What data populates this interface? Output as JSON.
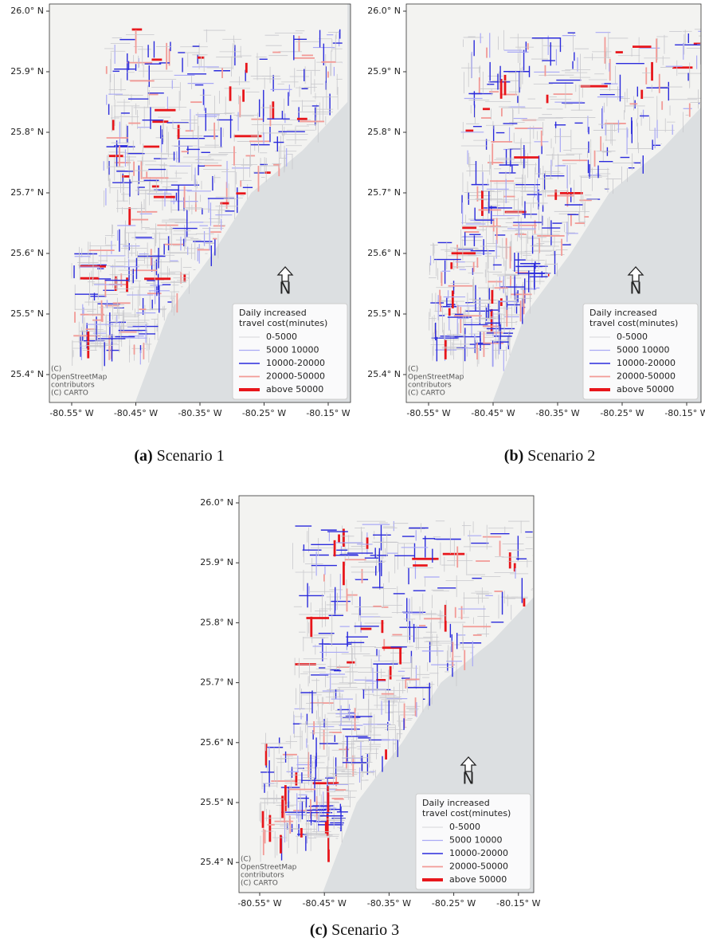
{
  "lat_ticks": [
    {
      "value": 26.0,
      "label": "26.0° N"
    },
    {
      "value": 25.9,
      "label": "25.9° N"
    },
    {
      "value": 25.8,
      "label": "25.8° N"
    },
    {
      "value": 25.7,
      "label": "25.7° N"
    },
    {
      "value": 25.6,
      "label": "25.6° N"
    },
    {
      "value": 25.5,
      "label": "25.5° N"
    },
    {
      "value": 25.4,
      "label": "25.4° N"
    }
  ],
  "lon_ticks": [
    {
      "value": -80.55,
      "label": "-80.55° W"
    },
    {
      "value": -80.45,
      "label": "-80.45° W"
    },
    {
      "value": -80.35,
      "label": "-80.35° W"
    },
    {
      "value": -80.25,
      "label": "-80.25° W"
    },
    {
      "value": -80.15,
      "label": "-80.15° W"
    }
  ],
  "legend": {
    "title": [
      "Daily increased",
      "travel cost(minutes)"
    ],
    "entries": [
      {
        "label": "0-5000",
        "color": "#c8c8cc"
      },
      {
        "label": "5000 10000",
        "color": "#a9a9f5"
      },
      {
        "label": "10000-20000",
        "color": "#2b2bdc"
      },
      {
        "label": "20000-50000",
        "color": "#f29a96"
      },
      {
        "label": "above 50000",
        "color": "#e8161b"
      }
    ]
  },
  "attribution": [
    "(C)",
    "OpenStreetMap",
    "contributors",
    "(C) CARTO"
  ],
  "north": "N",
  "panels": [
    {
      "tag": "(a)",
      "caption": "Scenario 1"
    },
    {
      "tag": "(b)",
      "caption": "Scenario 2"
    },
    {
      "tag": "(c)",
      "caption": "Scenario 3"
    }
  ]
}
